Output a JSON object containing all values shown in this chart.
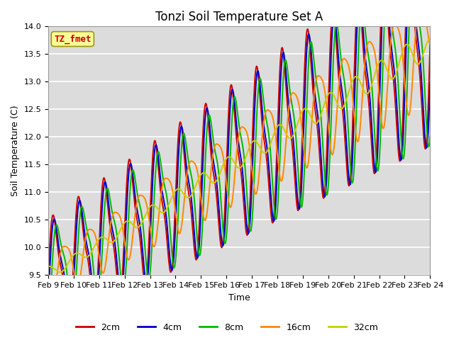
{
  "title": "Tonzi Soil Temperature Set A",
  "xlabel": "Time",
  "ylabel": "Soil Temperature (C)",
  "ylim": [
    9.5,
    14.0
  ],
  "xtick_labels": [
    "Feb 9",
    "Feb 10",
    "Feb 11",
    "Feb 12",
    "Feb 13",
    "Feb 14",
    "Feb 15",
    "Feb 16",
    "Feb 17",
    "Feb 18",
    "Feb 19",
    "Feb 20",
    "Feb 21",
    "Feb 22",
    "Feb 23",
    "Feb 24"
  ],
  "legend_entries": [
    "2cm",
    "4cm",
    "8cm",
    "16cm",
    "32cm"
  ],
  "line_colors": [
    "#cc0000",
    "#0000cc",
    "#00bb00",
    "#ff8800",
    "#cccc00"
  ],
  "annotation_text": "TZ_fmet",
  "annotation_color": "#cc0000",
  "annotation_bg": "#ffff99",
  "plot_bg": "#dcdcdc",
  "title_fontsize": 12,
  "axis_fontsize": 9,
  "tick_fontsize": 8,
  "line_width": 1.4,
  "yticks": [
    9.5,
    10.0,
    10.5,
    11.0,
    11.5,
    12.0,
    12.5,
    13.0,
    13.5,
    14.0
  ]
}
